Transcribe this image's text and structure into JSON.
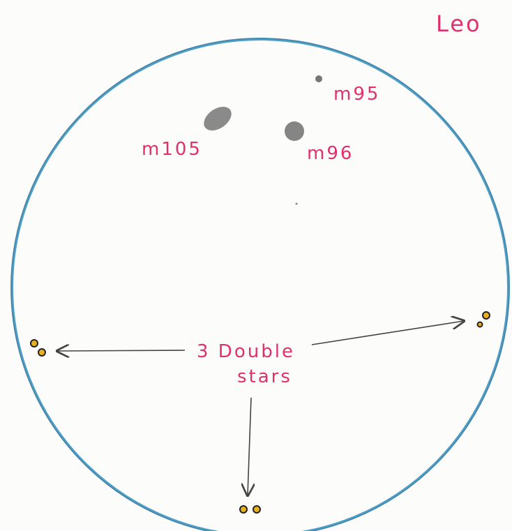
{
  "title": "Leo",
  "objects": [
    {
      "label": "m95"
    },
    {
      "label": "m105"
    },
    {
      "label": "m96"
    }
  ],
  "annotation": {
    "lines": [
      "3 Double",
      "stars"
    ]
  }
}
